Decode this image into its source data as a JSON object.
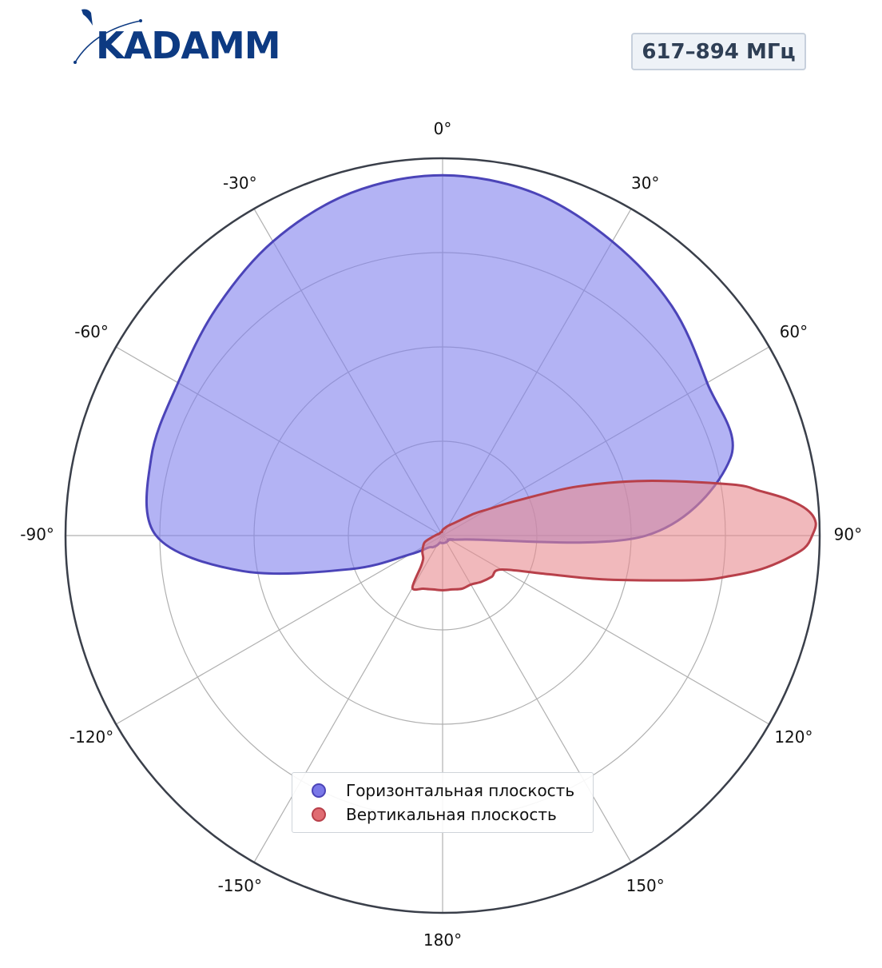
{
  "header": {
    "logo_text": "KADAMM",
    "frequency_label": "617–894 МГц"
  },
  "colors": {
    "horizontal_fill": "#8080ec",
    "horizontal_line": "#4b44b8",
    "vertical_fill": "#e88a90",
    "vertical_line": "#b8404a",
    "logo": "#0d3a82"
  },
  "chart_data": {
    "type": "polar-area",
    "angular_direction": "clockwise",
    "zero_position": "top",
    "angular_ticks": [
      "0°",
      "30°",
      "60°",
      "90°",
      "120°",
      "150°",
      "180°",
      "-150°",
      "-120°",
      "-90°",
      "-60°",
      "-30°"
    ],
    "angular_tick_values": [
      0,
      30,
      60,
      90,
      120,
      150,
      180,
      -150,
      -120,
      -90,
      -60,
      -30
    ],
    "radial_rings": [
      0.25,
      0.5,
      0.75,
      1.0
    ],
    "radial_tick_labels_shown": false,
    "grid": true,
    "legend_position": "lower-center",
    "series": [
      {
        "name": "Горизонтальная плоскость",
        "angles": [
          0,
          15,
          30,
          45,
          60,
          75,
          90,
          100,
          110,
          120,
          130,
          140,
          150,
          160,
          170,
          180,
          -170,
          -160,
          -150,
          -140,
          -130,
          -120,
          -110,
          -100,
          -90,
          -75,
          -60,
          -45,
          -30,
          -15
        ],
        "r": [
          0.955,
          0.94,
          0.9,
          0.86,
          0.81,
          0.79,
          0.54,
          0.06,
          0.03,
          0.02,
          0.02,
          0.02,
          0.02,
          0.02,
          0.02,
          0.02,
          0.02,
          0.02,
          0.03,
          0.04,
          0.05,
          0.1,
          0.26,
          0.54,
          0.76,
          0.8,
          0.81,
          0.85,
          0.9,
          0.94
        ]
      },
      {
        "name": "Вертикальная плоскость",
        "angles": [
          0,
          15,
          30,
          45,
          55,
          60,
          65,
          70,
          75,
          80,
          82,
          84,
          86,
          88,
          90,
          92,
          94,
          96,
          98,
          100,
          105,
          110,
          120,
          130,
          140,
          150,
          160,
          170,
          180,
          -170,
          -160,
          -150,
          -145,
          -140,
          -130,
          -120,
          -110,
          -100,
          -90,
          -80,
          -60,
          -40,
          -20,
          -10
        ],
        "r": [
          0.015,
          0.02,
          0.03,
          0.05,
          0.1,
          0.14,
          0.22,
          0.38,
          0.56,
          0.78,
          0.85,
          0.92,
          0.97,
          0.99,
          0.98,
          0.96,
          0.91,
          0.85,
          0.77,
          0.68,
          0.45,
          0.3,
          0.18,
          0.17,
          0.16,
          0.15,
          0.15,
          0.145,
          0.145,
          0.145,
          0.15,
          0.16,
          0.1,
          0.08,
          0.07,
          0.06,
          0.05,
          0.03,
          0.02,
          0.015,
          0.01,
          0.01,
          0.01,
          0.01
        ]
      }
    ],
    "legend": [
      "Горизонтальная плоскость",
      "Вертикальная плоскость"
    ]
  }
}
